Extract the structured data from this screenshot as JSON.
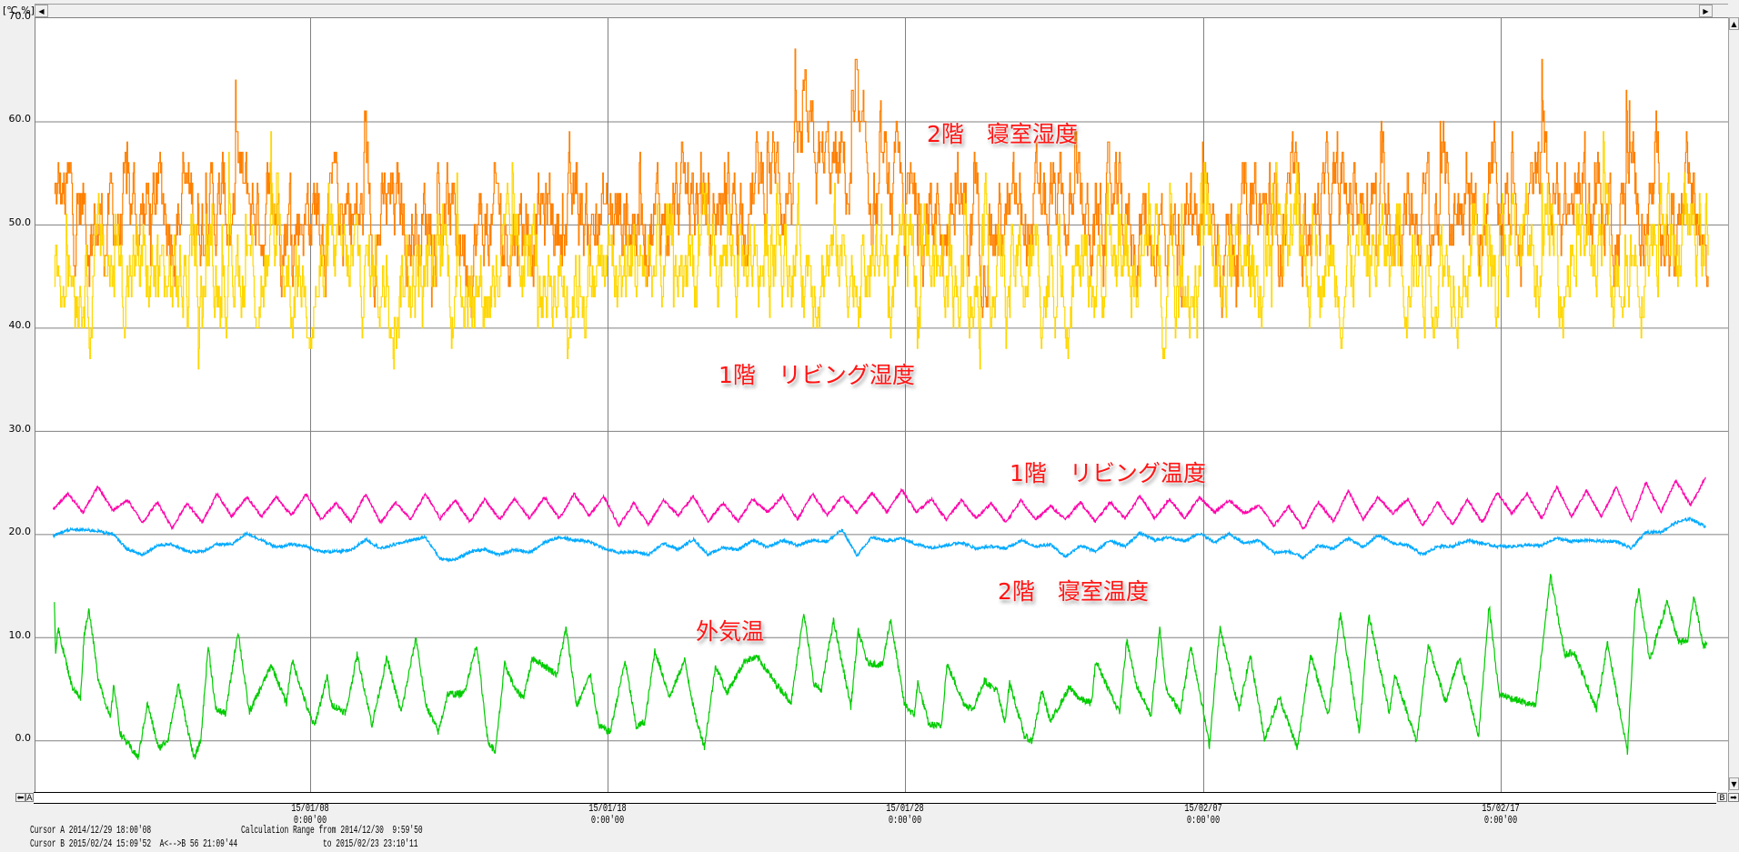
{
  "header": {
    "unit_label": "[℃,%]"
  },
  "footer": {
    "cursor_a": "Cursor A 2014/12/29 18:00'08",
    "cursor_b": "Cursor B 2015/02/24 15:09'52  A<-->B 56 21:09'44",
    "calc_range_from": "Calculation Range from 2014/12/30  9:59'50",
    "calc_range_to": "to 2015/02/23 23:10'11",
    "cursor_a_marker": "A",
    "cursor_b_marker": "B"
  },
  "chart_data": {
    "type": "line",
    "title": "",
    "xlabel": "",
    "ylabel": "[℃,%]",
    "xlim": [
      "2014/12/29 18:00",
      "2015/02/24 15:09"
    ],
    "ylim": [
      -5,
      70
    ],
    "grid": true,
    "y_ticks": [
      "70.0",
      "60.0",
      "50.0",
      "40.0",
      "30.0",
      "20.0",
      "10.0",
      "0.0"
    ],
    "y_tick_values": [
      70,
      60,
      50,
      40,
      30,
      20,
      10,
      0
    ],
    "x_ticks": [
      {
        "date": "15/01/08",
        "time": "0:00'00",
        "at": "2015/01/08 00:00"
      },
      {
        "date": "15/01/18",
        "time": "0:00'00",
        "at": "2015/01/18 00:00"
      },
      {
        "date": "15/01/28",
        "time": "0:00'00",
        "at": "2015/01/28 00:00"
      },
      {
        "date": "15/02/07",
        "time": "0:00'00",
        "at": "2015/02/07 00:00"
      },
      {
        "date": "15/02/17",
        "time": "0:00'00",
        "at": "2015/02/17 00:00"
      }
    ],
    "series": [
      {
        "name": "2階　寝室湿度",
        "color": "#ff8000",
        "style": "step",
        "start": "2014/12/30 10:00",
        "interval_hours": 48,
        "approximate_level": true,
        "values": [
          52,
          50,
          52,
          51,
          52,
          50,
          51,
          49,
          51,
          50,
          51,
          52,
          54,
          55,
          52,
          50,
          50,
          50,
          50,
          49,
          50,
          51,
          52,
          51,
          52,
          52,
          51,
          52,
          47
        ]
      },
      {
        "name": "1階　リビング湿度",
        "color": "#ffd700",
        "style": "step",
        "start": "2014/12/30 10:00",
        "interval_hours": 48,
        "approximate_level": true,
        "values": [
          46,
          46,
          44,
          46,
          45,
          45,
          46,
          44,
          46,
          45,
          46,
          46,
          47,
          47,
          46,
          45,
          45,
          45,
          46,
          45,
          45,
          46,
          47,
          47,
          48,
          47,
          47,
          48,
          49
        ]
      },
      {
        "name": "1階　リビング温度",
        "color": "#ff00aa",
        "style": "line",
        "start": "2014/12/30 09:00",
        "interval_hours": 12,
        "values": [
          22.4,
          23.9,
          22.1,
          24.6,
          22.3,
          23.3,
          21.1,
          23.1,
          20.6,
          23.0,
          21.1,
          23.9,
          21.7,
          23.6,
          21.7,
          23.6,
          21.8,
          23.9,
          21.4,
          23.0,
          21.2,
          23.9,
          21.1,
          23.1,
          21.4,
          23.9,
          21.5,
          23.3,
          21.2,
          23.4,
          21.4,
          23.4,
          21.5,
          23.6,
          21.5,
          23.9,
          21.8,
          23.6,
          20.8,
          23.0,
          20.9,
          23.3,
          21.8,
          23.7,
          21.2,
          23.0,
          21.2,
          23.4,
          22.1,
          23.7,
          21.4,
          23.9,
          21.8,
          23.7,
          22.1,
          24.0,
          22.1,
          24.3,
          22.1,
          23.4,
          21.4,
          23.3,
          21.5,
          23.0,
          21.1,
          23.3,
          21.4,
          22.7,
          21.4,
          23.1,
          21.2,
          23.1,
          21.5,
          23.7,
          21.5,
          23.4,
          21.5,
          23.6,
          22.1,
          23.3,
          22.0,
          22.8,
          20.8,
          22.7,
          20.5,
          23.1,
          21.2,
          24.2,
          21.4,
          23.6,
          22.0,
          23.4,
          20.8,
          23.1,
          20.9,
          23.4,
          21.1,
          24.0,
          22.0,
          23.9,
          21.5,
          24.6,
          21.7,
          24.2,
          21.7,
          24.6,
          21.2,
          25.0,
          22.1,
          25.2,
          22.8,
          25.5
        ]
      },
      {
        "name": "2階　寝室温度",
        "color": "#00aaff",
        "style": "line",
        "start": "2014/12/30 09:00",
        "interval_hours": 12,
        "values": [
          19.8,
          20.4,
          20.4,
          20.3,
          20.0,
          18.5,
          18.0,
          18.9,
          19.0,
          18.3,
          18.3,
          19.0,
          19.0,
          20.1,
          19.4,
          18.7,
          19.0,
          18.8,
          18.3,
          18.3,
          18.4,
          19.5,
          18.6,
          19.0,
          19.4,
          19.7,
          17.6,
          17.5,
          18.3,
          18.5,
          18.0,
          18.5,
          18.2,
          19.2,
          19.7,
          19.4,
          19.3,
          18.6,
          18.2,
          18.3,
          18.0,
          19.1,
          18.5,
          19.5,
          18.0,
          18.7,
          18.5,
          19.4,
          18.7,
          19.4,
          18.9,
          19.4,
          19.3,
          20.4,
          17.9,
          19.7,
          19.3,
          19.6,
          19.0,
          18.7,
          18.9,
          19.2,
          18.6,
          18.8,
          18.6,
          19.4,
          18.8,
          19.0,
          17.8,
          18.9,
          18.3,
          19.4,
          18.8,
          20.1,
          19.4,
          19.7,
          19.3,
          20.1,
          19.2,
          20.0,
          19.1,
          19.4,
          18.2,
          18.3,
          17.7,
          18.9,
          18.6,
          19.6,
          18.7,
          19.9,
          19.1,
          18.9,
          18.0,
          18.8,
          18.8,
          19.4,
          19.1,
          18.8,
          18.8,
          18.9,
          18.9,
          19.6,
          19.3,
          19.4,
          19.3,
          19.3,
          18.6,
          20.2,
          20.2,
          21.1,
          21.5,
          20.7
        ]
      },
      {
        "name": "外気温",
        "color": "#00cc00",
        "style": "line",
        "points": [
          [
            "2014/12/30 10:00",
            13.5
          ],
          [
            "2014/12/30 11:00",
            8.6
          ],
          [
            "2014/12/30 13:00",
            10.8
          ],
          [
            "2014/12/31 00:00",
            5.3
          ],
          [
            "2014/12/31 07:00",
            4.0
          ],
          [
            "2014/12/31 10:00",
            10.3
          ],
          [
            "2014/12/31 14:00",
            12.7
          ],
          [
            "2014/12/31 21:00",
            6.2
          ],
          [
            "2015/01/01 07:00",
            2.1
          ],
          [
            "2015/01/01 10:00",
            5.4
          ],
          [
            "2015/01/01 15:00",
            0.7
          ],
          [
            "2015/01/02 05:30",
            -1.7
          ],
          [
            "2015/01/02 13:00",
            3.6
          ],
          [
            "2015/01/02 22:00",
            -0.8
          ],
          [
            "2015/01/03 05:30",
            0.1
          ],
          [
            "2015/01/03 14:00",
            5.4
          ],
          [
            "2015/01/04 02:30",
            -1.8
          ],
          [
            "2015/01/04 08:00",
            0.0
          ],
          [
            "2015/01/04 14:00",
            9.2
          ],
          [
            "2015/01/04 20:00",
            3.0
          ],
          [
            "2015/01/05 04:00",
            2.6
          ],
          [
            "2015/01/05 14:00",
            10.6
          ],
          [
            "2015/01/05 23:00",
            2.7
          ],
          [
            "2015/01/06 17:00",
            7.3
          ],
          [
            "2015/01/07 05:00",
            3.6
          ],
          [
            "2015/01/07 09:30",
            7.8
          ],
          [
            "2015/01/07 23:00",
            2.7
          ],
          [
            "2015/01/08 03:30",
            1.4
          ],
          [
            "2015/01/08 14:00",
            6.2
          ],
          [
            "2015/01/08 17:00",
            3.5
          ],
          [
            "2015/01/09 05:00",
            2.7
          ],
          [
            "2015/01/09 14:00",
            8.3
          ],
          [
            "2015/01/10 02:00",
            1.5
          ],
          [
            "2015/01/10 14:00",
            8.0
          ],
          [
            "2015/01/11 01:30",
            2.7
          ],
          [
            "2015/01/11 13:30",
            10.0
          ],
          [
            "2015/01/11 21:00",
            3.6
          ],
          [
            "2015/01/12 07:30",
            0.8
          ],
          [
            "2015/01/12 15:00",
            4.5
          ],
          [
            "2015/01/13 04:00",
            4.5
          ],
          [
            "2015/01/13 14:30",
            9.3
          ],
          [
            "2015/01/13 23:30",
            -0.2
          ],
          [
            "2015/01/14 05:30",
            -1.1
          ],
          [
            "2015/01/14 13:00",
            7.4
          ],
          [
            "2015/01/14 22:00",
            4.8
          ],
          [
            "2015/01/15 04:00",
            4.2
          ],
          [
            "2015/01/15 11:30",
            8.0
          ],
          [
            "2015/01/16 07:00",
            6.4
          ],
          [
            "2015/01/16 14:30",
            10.9
          ],
          [
            "2015/01/16 23:00",
            3.3
          ],
          [
            "2015/01/17 10:00",
            6.4
          ],
          [
            "2015/01/17 17:00",
            1.4
          ],
          [
            "2015/01/18 02:00",
            0.8
          ],
          [
            "2015/01/18 14:00",
            7.7
          ],
          [
            "2015/01/18 23:00",
            1.3
          ],
          [
            "2015/01/19 06:00",
            1.8
          ],
          [
            "2015/01/19 14:00",
            8.7
          ],
          [
            "2015/01/20 02:00",
            4.2
          ],
          [
            "2015/01/20 14:00",
            7.8
          ],
          [
            "2015/01/20 22:30",
            2.4
          ],
          [
            "2015/01/21 06:00",
            -0.6
          ],
          [
            "2015/01/21 15:00",
            7.3
          ],
          [
            "2015/01/22 00:00",
            4.6
          ],
          [
            "2015/01/22 15:00",
            7.8
          ],
          [
            "2015/01/23 01:30",
            8.0
          ],
          [
            "2015/01/23 13:00",
            5.9
          ],
          [
            "2015/01/24 04:00",
            3.7
          ],
          [
            "2015/01/24 14:00",
            12.5
          ],
          [
            "2015/01/24 22:00",
            5.6
          ],
          [
            "2015/01/25 04:00",
            4.8
          ],
          [
            "2015/01/25 14:00",
            11.6
          ],
          [
            "2015/01/26 04:00",
            3.3
          ],
          [
            "2015/01/26 10:00",
            10.6
          ],
          [
            "2015/01/26 17:30",
            7.5
          ],
          [
            "2015/01/27 05:30",
            7.3
          ],
          [
            "2015/01/27 12:00",
            11.8
          ],
          [
            "2015/01/27 23:00",
            3.6
          ],
          [
            "2015/01/28 07:00",
            2.4
          ],
          [
            "2015/01/28 10:00",
            5.6
          ],
          [
            "2015/01/28 19:00",
            1.5
          ],
          [
            "2015/01/29 05:00",
            1.4
          ],
          [
            "2015/01/29 09:30",
            7.4
          ],
          [
            "2015/01/29 23:00",
            3.6
          ],
          [
            "2015/01/30 06:30",
            3.0
          ],
          [
            "2015/01/30 15:30",
            5.8
          ],
          [
            "2015/01/31 02:00",
            4.8
          ],
          [
            "2015/01/31 08:00",
            1.7
          ],
          [
            "2015/01/31 12:00",
            5.6
          ],
          [
            "2015/02/01 00:00",
            0.4
          ],
          [
            "2015/02/01 06:00",
            -0.1
          ],
          [
            "2015/02/01 14:00",
            4.8
          ],
          [
            "2015/02/01 21:00",
            1.8
          ],
          [
            "2015/02/02 12:00",
            5.1
          ],
          [
            "2015/02/02 21:00",
            4.0
          ],
          [
            "2015/02/03 06:00",
            3.6
          ],
          [
            "2015/02/03 09:30",
            7.7
          ],
          [
            "2015/02/04 04:30",
            2.7
          ],
          [
            "2015/02/04 10:30",
            9.7
          ],
          [
            "2015/02/04 18:00",
            5.4
          ],
          [
            "2015/02/05 06:00",
            2.4
          ],
          [
            "2015/02/05 13:00",
            10.8
          ],
          [
            "2015/02/05 18:00",
            5.1
          ],
          [
            "2015/02/06 05:30",
            2.7
          ],
          [
            "2015/02/06 14:00",
            9.2
          ],
          [
            "2015/02/06 23:00",
            3.6
          ],
          [
            "2015/02/07 05:00",
            -0.5
          ],
          [
            "2015/02/07 13:30",
            10.9
          ],
          [
            "2015/02/08 05:00",
            3.0
          ],
          [
            "2015/02/08 14:00",
            8.3
          ],
          [
            "2015/02/09 01:30",
            0.1
          ],
          [
            "2015/02/09 13:30",
            4.2
          ],
          [
            "2015/02/10 04:00",
            -0.8
          ],
          [
            "2015/02/10 14:30",
            8.3
          ],
          [
            "2015/02/11 05:00",
            2.4
          ],
          [
            "2015/02/11 14:30",
            12.4
          ],
          [
            "2015/02/12 06:00",
            0.7
          ],
          [
            "2015/02/12 13:30",
            12.2
          ],
          [
            "2015/02/13 06:00",
            2.7
          ],
          [
            "2015/02/13 10:30",
            6.4
          ],
          [
            "2015/02/14 04:00",
            -0.1
          ],
          [
            "2015/02/14 13:30",
            9.2
          ],
          [
            "2015/02/15 03:30",
            3.7
          ],
          [
            "2015/02/15 14:30",
            8.0
          ],
          [
            "2015/02/16 06:00",
            0.4
          ],
          [
            "2015/02/16 14:30",
            13.1
          ],
          [
            "2015/02/16 22:30",
            4.5
          ],
          [
            "2015/02/18 04:00",
            3.3
          ],
          [
            "2015/02/18 16:00",
            16.0
          ],
          [
            "2015/02/19 03:30",
            8.3
          ],
          [
            "2015/02/19 11:00",
            8.6
          ],
          [
            "2015/02/20 05:00",
            3.0
          ],
          [
            "2015/02/20 14:00",
            9.4
          ],
          [
            "2015/02/21 06:00",
            -1.2
          ],
          [
            "2015/02/21 12:00",
            12.4
          ],
          [
            "2015/02/21 15:00",
            14.7
          ],
          [
            "2015/02/22 00:00",
            7.8
          ],
          [
            "2015/02/22 14:00",
            13.4
          ],
          [
            "2015/02/22 23:00",
            9.6
          ],
          [
            "2015/02/23 06:30",
            9.6
          ],
          [
            "2015/02/23 11:30",
            14.1
          ],
          [
            "2015/02/23 19:00",
            9.2
          ],
          [
            "2015/02/23 22:00",
            9.2
          ]
        ]
      }
    ],
    "annotations": [
      {
        "text": "2階　寝室湿度",
        "color": "#ff1414"
      },
      {
        "text": "1階　リビング湿度",
        "color": "#ff1414"
      },
      {
        "text": "1階　リビング温度",
        "color": "#ff1414"
      },
      {
        "text": "2階　寝室温度",
        "color": "#ff1414"
      },
      {
        "text": "外気温",
        "color": "#ff1414"
      }
    ],
    "grid_color": "#808080"
  }
}
